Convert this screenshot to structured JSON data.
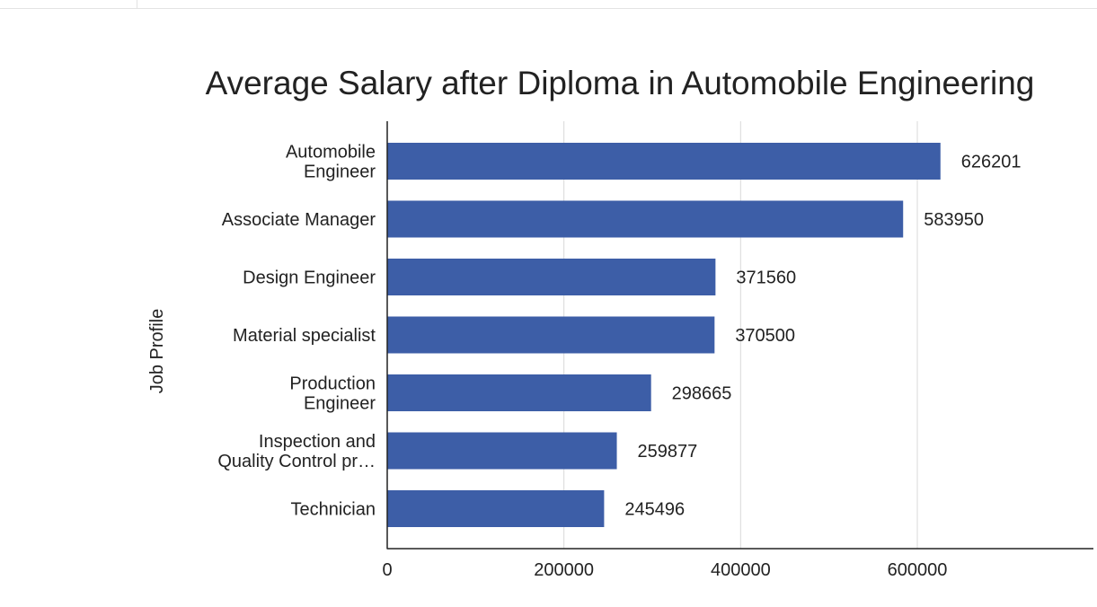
{
  "colors": {
    "bar": "#3d5ea7",
    "grid": "#d9d9d9",
    "axis": "#222222"
  },
  "chart_data": {
    "type": "bar",
    "orientation": "horizontal",
    "title": "Average Salary after Diploma in Automobile Engineering",
    "ylabel": "Job Profile",
    "xlabel": "",
    "categories": [
      [
        "Automobile",
        "Engineer"
      ],
      [
        "Associate Manager"
      ],
      [
        "Design Engineer"
      ],
      [
        "Material specialist"
      ],
      [
        "Production",
        "Engineer"
      ],
      [
        "Inspection and",
        "Quality Control pr…"
      ],
      [
        "Technician"
      ]
    ],
    "values": [
      626201,
      583950,
      371560,
      370500,
      298665,
      259877,
      245496
    ],
    "data_labels": [
      "626201",
      "583950",
      "371560",
      "370500",
      "298665",
      "259877",
      "245496"
    ],
    "xlim": [
      0,
      800000
    ],
    "xticks": [
      0,
      200000,
      400000,
      600000
    ],
    "xtick_labels": [
      "0",
      "200000",
      "400000",
      "600000"
    ],
    "grid": true,
    "legend": "none"
  }
}
